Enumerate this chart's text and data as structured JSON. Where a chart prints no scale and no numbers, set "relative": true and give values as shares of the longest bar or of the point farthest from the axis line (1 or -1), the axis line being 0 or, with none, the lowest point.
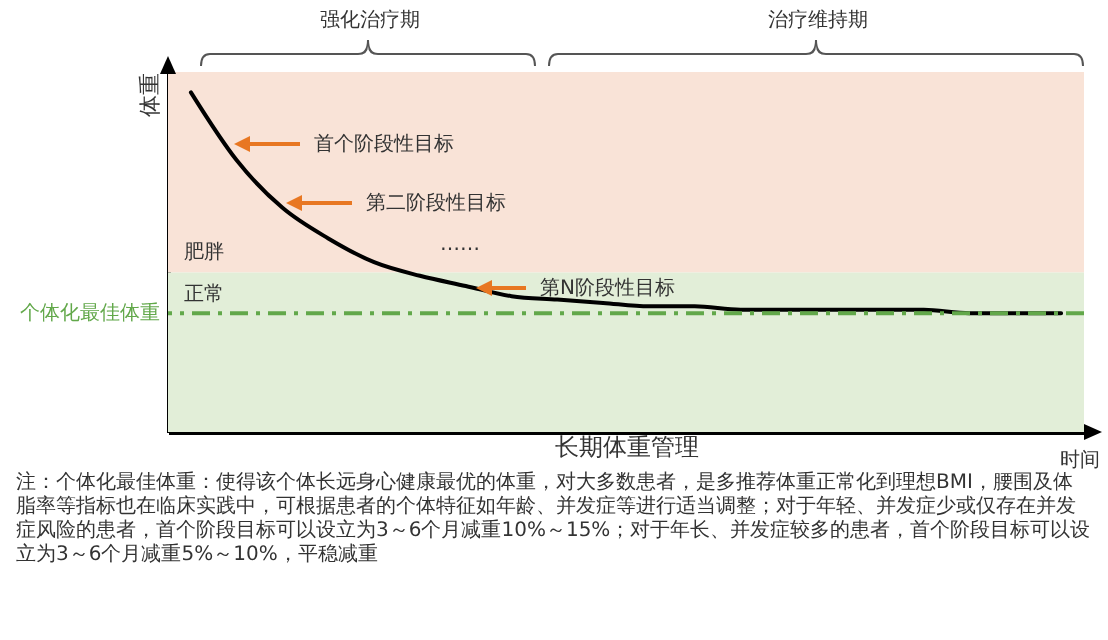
{
  "chart_data": {
    "type": "line",
    "relative": true,
    "xlabel": "长期体重管理",
    "ylabel": "体重",
    "categories": [
      null,
      null,
      null,
      null,
      null,
      null,
      null,
      null,
      null,
      null,
      null,
      null,
      null,
      null,
      null,
      null,
      null,
      null,
      null,
      null
    ],
    "series": [
      {
        "color": "#000000",
        "values": [
          1,
          0.8,
          0.66,
          0.57,
          0.5,
          0.46,
          0.43,
          0.4,
          0.39,
          0.38,
          0.37,
          0.37,
          0.36,
          0.36,
          0.36,
          0.36,
          0.36,
          0.35,
          0.35,
          0.35
        ]
      }
    ],
    "bands": [
      {
        "axis": "y",
        "from": 0.47,
        "to": 1.06,
        "label": "肥胖",
        "color": "#f9e3d7"
      },
      {
        "axis": "y",
        "from": 0,
        "to": 0.47,
        "label": "正常",
        "color": "#e2eed8"
      }
    ],
    "ref_lines": [
      {
        "axis": "y",
        "value": 0.35,
        "label": "个体化最佳体重",
        "color": "#62a84a",
        "line_style": "dashed"
      }
    ],
    "annotations": [
      "强化治疗期",
      "治疗维持期",
      "首个阶段性目标",
      "第二阶段性目标",
      "……",
      "第N阶段性目标",
      "时间",
      "注：个体化最佳体重：使得该个体长远身心健康最优的体重，对大多数患者，是多推荐体重正常化到理想BMI，腰围及体脂率等指标也在临床实践中，可根据患者的个体特征如年龄、并发症等进行适当调整；对于年轻、并发症少或仅存在并发症风险的患者，首个阶段目标可以设立为3～6个月减重10%～15%；对于年长、并发症较多的患者，首个阶段目标可以设立为3～6个月减重5%～10%，平稳减重"
    ]
  }
}
